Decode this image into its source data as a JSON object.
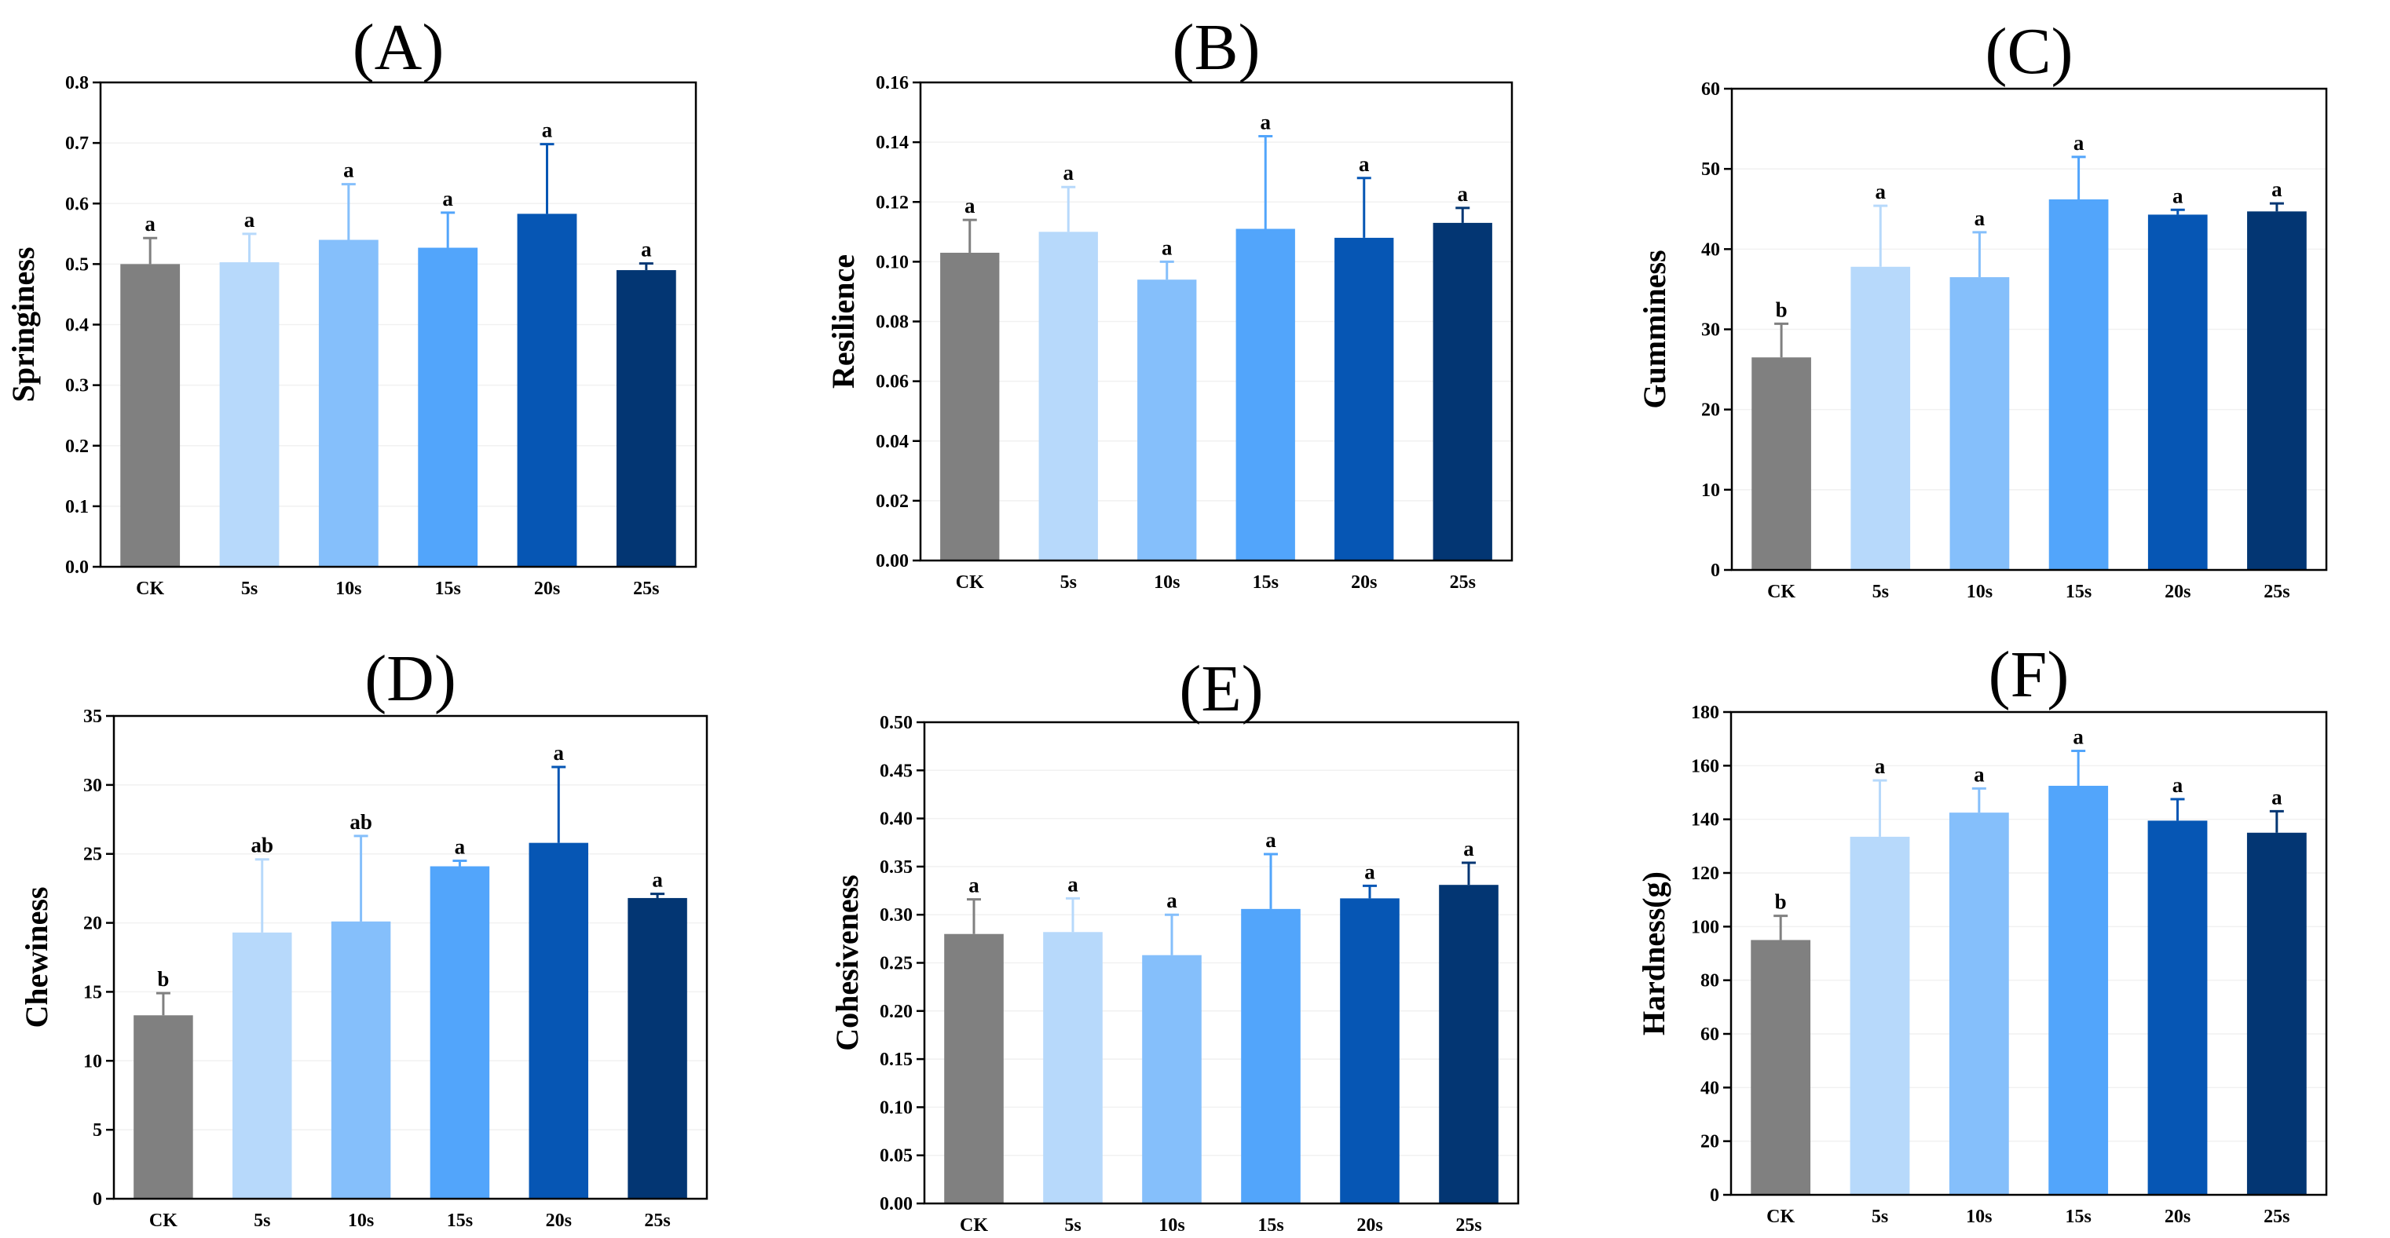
{
  "figure": {
    "colors": [
      "#808080",
      "#b7d9fb",
      "#85bffb",
      "#52a5fb",
      "#0656b4",
      "#033673"
    ],
    "grid_color": "#f1f1f1"
  },
  "chart_data": [
    {
      "type": "bar",
      "title": "(A)",
      "ylabel": "Springiness",
      "xlabel": "",
      "categories": [
        "CK",
        "5s",
        "10s",
        "15s",
        "20s",
        "25s"
      ],
      "values": [
        0.5,
        0.503,
        0.54,
        0.527,
        0.583,
        0.49
      ],
      "errors": [
        0.043,
        0.047,
        0.092,
        0.058,
        0.115,
        0.011
      ],
      "letters": [
        "a",
        "a",
        "a",
        "a",
        "a",
        "a"
      ],
      "ylim": [
        0,
        0.8
      ],
      "yticks": [
        "0.0",
        "0.1",
        "0.2",
        "0.3",
        "0.4",
        "0.5",
        "0.6",
        "0.7",
        "0.8"
      ],
      "grid": true
    },
    {
      "type": "bar",
      "title": "(B)",
      "ylabel": "Resilience",
      "xlabel": "",
      "categories": [
        "CK",
        "5s",
        "10s",
        "15s",
        "20s",
        "25s"
      ],
      "values": [
        0.103,
        0.11,
        0.094,
        0.111,
        0.108,
        0.113
      ],
      "errors": [
        0.011,
        0.015,
        0.006,
        0.031,
        0.02,
        0.005
      ],
      "letters": [
        "a",
        "a",
        "a",
        "a",
        "a",
        "a"
      ],
      "ylim": [
        0,
        0.16
      ],
      "yticks": [
        "0.00",
        "0.02",
        "0.04",
        "0.06",
        "0.08",
        "0.10",
        "0.12",
        "0.14",
        "0.16"
      ],
      "grid": true
    },
    {
      "type": "bar",
      "title": "(C)",
      "ylabel": "Gumminess",
      "xlabel": "",
      "categories": [
        "CK",
        "5s",
        "10s",
        "15s",
        "20s",
        "25s"
      ],
      "values": [
        26.5,
        37.8,
        36.5,
        46.2,
        44.3,
        44.7
      ],
      "errors": [
        4.2,
        7.6,
        5.6,
        5.3,
        0.6,
        1.0
      ],
      "letters": [
        "b",
        "a",
        "a",
        "a",
        "a",
        "a"
      ],
      "ylim": [
        0,
        60
      ],
      "yticks": [
        "0",
        "10",
        "20",
        "30",
        "40",
        "50",
        "60"
      ],
      "grid": true
    },
    {
      "type": "bar",
      "title": "(D)",
      "ylabel": "Chewiness",
      "xlabel": "",
      "categories": [
        "CK",
        "5s",
        "10s",
        "15s",
        "20s",
        "25s"
      ],
      "values": [
        13.3,
        19.3,
        20.1,
        24.1,
        25.8,
        21.8
      ],
      "errors": [
        1.6,
        5.3,
        6.2,
        0.4,
        5.5,
        0.3
      ],
      "letters": [
        "b",
        "ab",
        "ab",
        "a",
        "a",
        "a"
      ],
      "ylim": [
        0,
        35
      ],
      "yticks": [
        "0",
        "5",
        "10",
        "15",
        "20",
        "25",
        "30",
        "35"
      ],
      "grid": true
    },
    {
      "type": "bar",
      "title": "(E)",
      "ylabel": "Cohesiveness",
      "xlabel": "",
      "categories": [
        "CK",
        "5s",
        "10s",
        "15s",
        "20s",
        "25s"
      ],
      "values": [
        0.28,
        0.282,
        0.258,
        0.306,
        0.317,
        0.331
      ],
      "errors": [
        0.036,
        0.035,
        0.042,
        0.057,
        0.013,
        0.023
      ],
      "letters": [
        "a",
        "a",
        "a",
        "a",
        "a",
        "a"
      ],
      "ylim": [
        0,
        0.5
      ],
      "yticks": [
        "0.00",
        "0.05",
        "0.10",
        "0.15",
        "0.20",
        "0.25",
        "0.30",
        "0.35",
        "0.40",
        "0.45",
        "0.50"
      ],
      "grid": true
    },
    {
      "type": "bar",
      "title": "(F)",
      "ylabel": "Hardness(g)",
      "xlabel": "",
      "categories": [
        "CK",
        "5s",
        "10s",
        "15s",
        "20s",
        "25s"
      ],
      "values": [
        95,
        133.5,
        142.5,
        152.5,
        139.5,
        135
      ],
      "errors": [
        9,
        21,
        9,
        13,
        8,
        8
      ],
      "letters": [
        "b",
        "a",
        "a",
        "a",
        "a",
        "a"
      ],
      "ylim": [
        0,
        180
      ],
      "yticks": [
        "0",
        "20",
        "40",
        "60",
        "80",
        "100",
        "120",
        "140",
        "160",
        "180"
      ],
      "grid": true
    }
  ]
}
